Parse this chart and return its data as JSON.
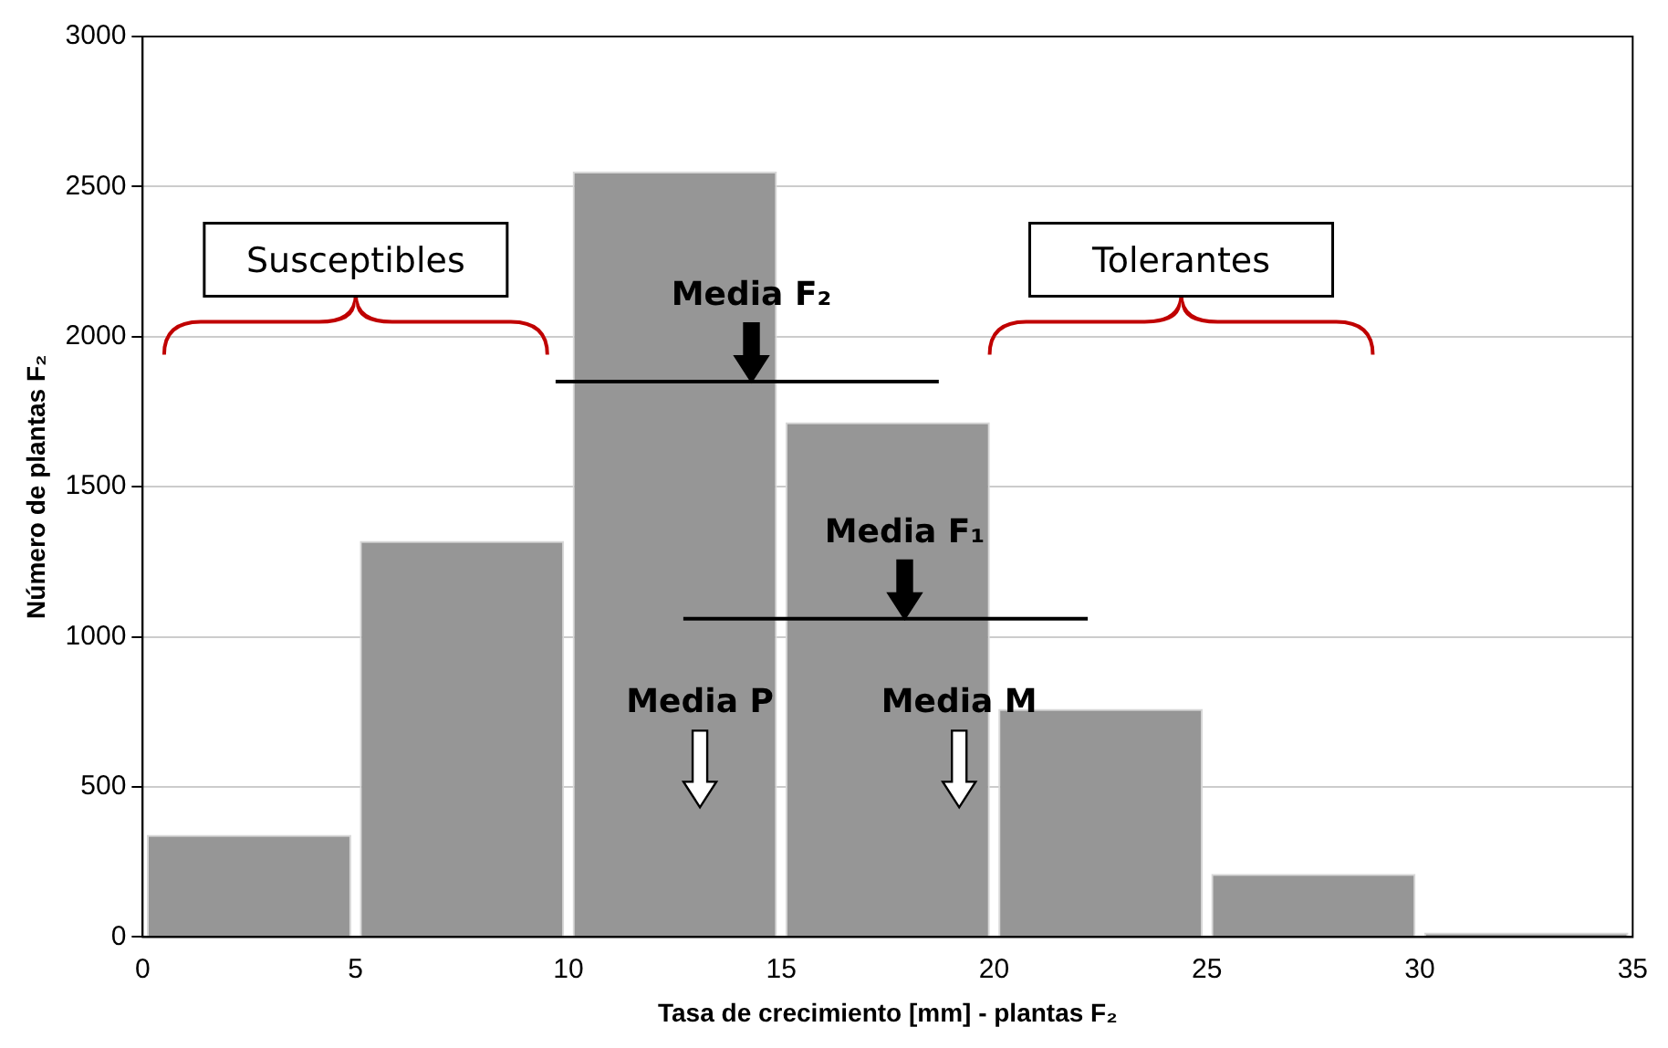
{
  "chart_data": {
    "type": "histogram",
    "xlabel": "Tasa de crecimiento [mm] - plantas F₂",
    "ylabel": "Número de plantas F₂",
    "bins": [
      0,
      5,
      10,
      15,
      20,
      25,
      30,
      35
    ],
    "values": [
      340,
      1320,
      2550,
      1715,
      760,
      210,
      15
    ],
    "color": "#969696",
    "series": [
      {
        "type": "line",
        "x": [
          9.7,
          18.7
        ],
        "values": [
          1850,
          1850
        ],
        "color": "#000000"
      },
      {
        "type": "line",
        "x": [
          12.7,
          22.2
        ],
        "values": [
          1060,
          1060
        ],
        "color": "#000000"
      }
    ],
    "xlim": [
      0,
      35
    ],
    "xticks": [
      0,
      5,
      10,
      15,
      20,
      25,
      30,
      35
    ],
    "ylim": [
      0,
      3000
    ],
    "yticks": [
      0,
      500,
      1000,
      1500,
      2000,
      2500,
      3000
    ],
    "grid": "y",
    "annotations": [
      "Susceptibles",
      "Tolerantes",
      {
        "text": "Media F₂",
        "x": 14.3,
        "y": 1850
      },
      {
        "text": "Media F₁",
        "x": 17.9,
        "y": 1060
      },
      "Media P",
      "Media M"
    ]
  }
}
